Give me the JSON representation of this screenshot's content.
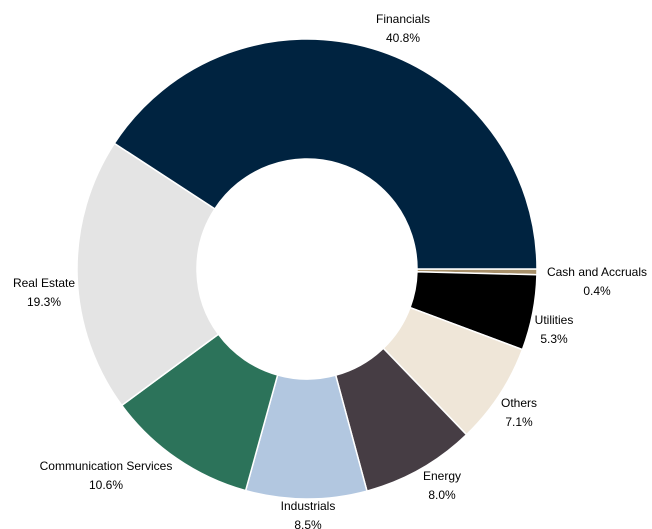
{
  "chart_data": {
    "type": "pie",
    "donut": true,
    "start_angle_deg": 90,
    "direction": "clockwise",
    "slices": [
      {
        "label": "Cash and Accruals",
        "value": 0.4,
        "value_label": "0.4%",
        "color": "#a8916b"
      },
      {
        "label": "Utilities",
        "value": 5.3,
        "value_label": "5.3%",
        "color": "#000000"
      },
      {
        "label": "Others",
        "value": 7.1,
        "value_label": "7.1%",
        "color": "#efe6d8"
      },
      {
        "label": "Energy",
        "value": 8.0,
        "value_label": "8.0%",
        "color": "#463d44"
      },
      {
        "label": "Industrials",
        "value": 8.5,
        "value_label": "8.5%",
        "color": "#b2c7e0"
      },
      {
        "label": "Communication Services",
        "value": 10.6,
        "value_label": "10.6%",
        "color": "#2c735a"
      },
      {
        "label": "Real Estate",
        "value": 19.3,
        "value_label": "19.3%",
        "color": "#e4e4e4"
      },
      {
        "label": "Financials",
        "value": 40.8,
        "value_label": "40.8%",
        "color": "#002340"
      }
    ]
  }
}
